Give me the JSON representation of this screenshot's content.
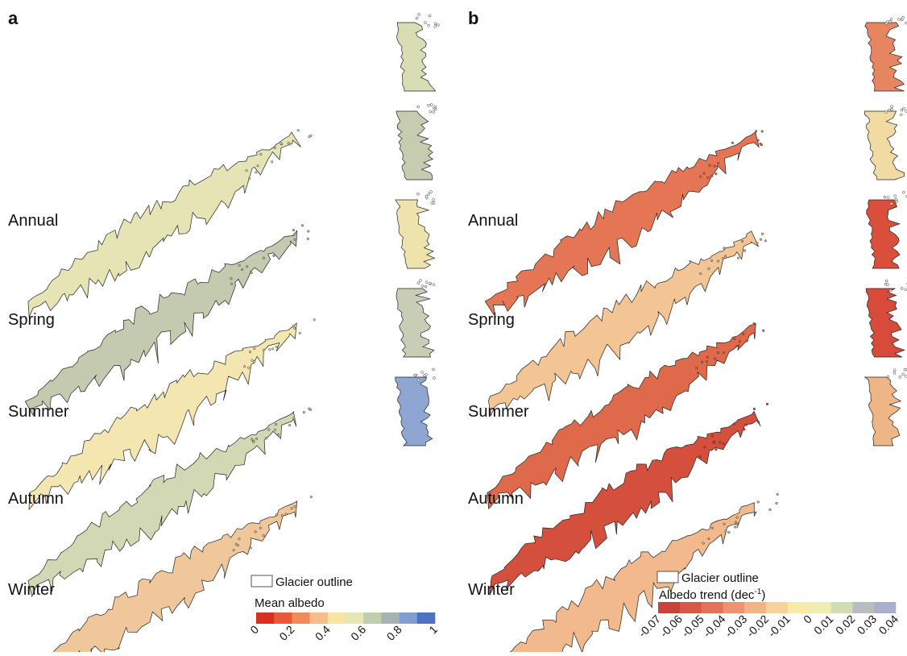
{
  "panels": [
    {
      "label": "a",
      "seasons": [
        "Annual",
        "Spring",
        "Summer",
        "Autumn",
        "Winter"
      ],
      "legend": {
        "outline": "Glacier outline",
        "title": "Mean albedo",
        "ticks": [
          "0",
          "0.2",
          "0.4",
          "0.6",
          "0.8",
          "1"
        ],
        "colors": [
          "#d7301f",
          "#e8593a",
          "#f08a5a",
          "#f7bd8a",
          "#f9e4a6",
          "#e6e7b5",
          "#bfcfae",
          "#a3b4b3",
          "#7f9fce",
          "#4a74c2"
        ]
      }
    },
    {
      "label": "b",
      "seasons": [
        "Annual",
        "Spring",
        "Summer",
        "Autumn",
        "Winter"
      ],
      "legend": {
        "outline": "Glacier outline",
        "title": {
          "text": "Albedo trend (dec",
          "sup": "-1",
          "end": ")"
        },
        "ticks": [
          "-0.07",
          "-0.06",
          "-0.05",
          "-0.04",
          "-0.03",
          "-0.02",
          "-0.01",
          "0",
          "0.01",
          "0.02",
          "0.03",
          "0.04"
        ],
        "colors": [
          "#c8433a",
          "#d65846",
          "#e2735a",
          "#ec9470",
          "#f3b485",
          "#f8d29b",
          "#faeaa8",
          "#eeeeb4",
          "#d2dcb4",
          "#b9bdbf",
          "#a8afcf"
        ]
      }
    }
  ]
}
